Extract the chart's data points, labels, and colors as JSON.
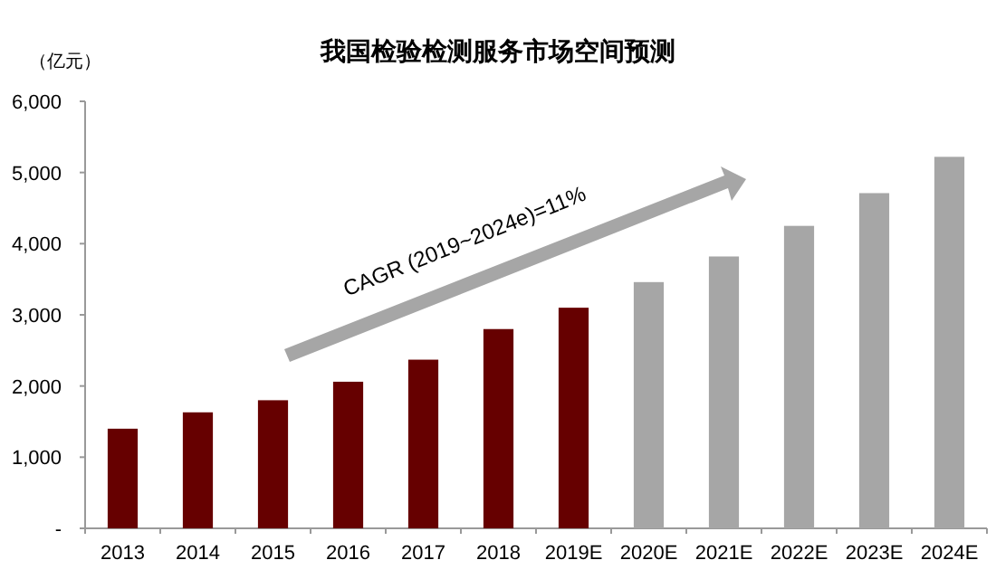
{
  "chart_data": {
    "type": "bar",
    "title": "我国检验检测服务市场空间预测",
    "ylabel": "（亿元）",
    "categories": [
      "2013",
      "2014",
      "2015",
      "2016",
      "2017",
      "2018",
      "2019E",
      "2020E",
      "2021E",
      "2022E",
      "2023E",
      "2024E"
    ],
    "values": [
      1400,
      1630,
      1800,
      2060,
      2370,
      2800,
      3100,
      3460,
      3820,
      4250,
      4710,
      5220
    ],
    "colors": [
      "#660000",
      "#660000",
      "#660000",
      "#660000",
      "#660000",
      "#660000",
      "#660000",
      "#a6a6a6",
      "#a6a6a6",
      "#a6a6a6",
      "#a6a6a6",
      "#a6a6a6"
    ],
    "ylim": [
      0,
      6000
    ],
    "yticks": [
      {
        "value": 0,
        "label": "-"
      },
      {
        "value": 1000,
        "label": "1,000"
      },
      {
        "value": 2000,
        "label": "2,000"
      },
      {
        "value": 3000,
        "label": "3,000"
      },
      {
        "value": 4000,
        "label": "4,000"
      },
      {
        "value": 5000,
        "label": "5,000"
      },
      {
        "value": 6000,
        "label": "6,000"
      }
    ],
    "grid": false,
    "annotations": [
      "CAGR (2019~2024e)=11%"
    ]
  }
}
